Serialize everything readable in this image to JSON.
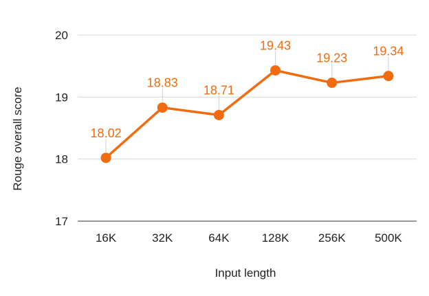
{
  "chart_data": {
    "type": "line",
    "title": "",
    "xlabel": "Input length",
    "ylabel": "Rouge overall score",
    "categories": [
      "16K",
      "32K",
      "64K",
      "128K",
      "256K",
      "500K"
    ],
    "series": [
      {
        "values": [
          18.02,
          18.83,
          18.71,
          19.43,
          19.23,
          19.34
        ],
        "labels": [
          "18.02",
          "18.83",
          "18.71",
          "19.43",
          "19.23",
          "19.34"
        ],
        "color": "#f26b0f"
      }
    ],
    "ylim": [
      17,
      20
    ],
    "yticks": [
      17,
      18,
      19,
      20
    ],
    "ytick_labels": [
      "17",
      "18",
      "19",
      "20"
    ],
    "grid": true,
    "legend": "none"
  }
}
